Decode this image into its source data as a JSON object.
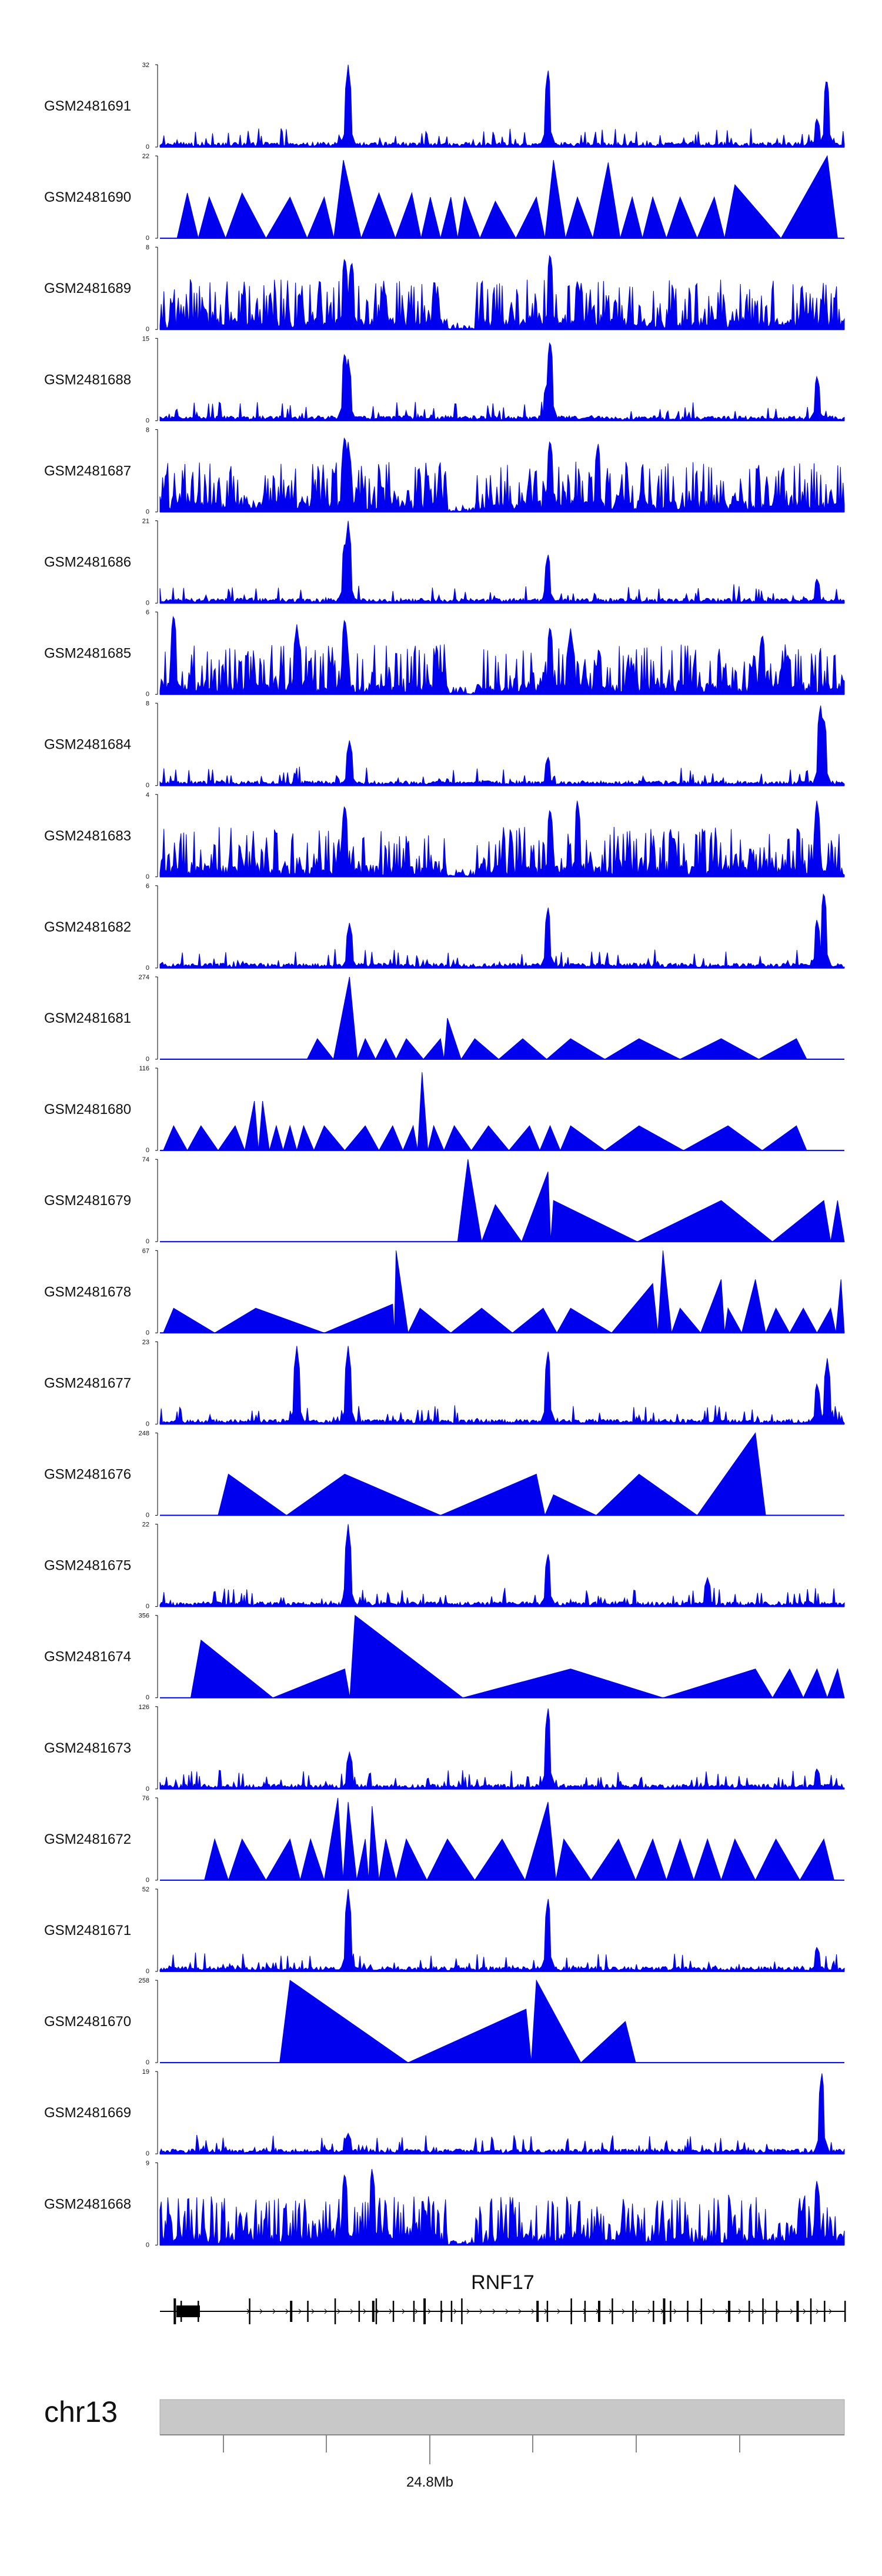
{
  "chart_data": {
    "type": "area",
    "chromosome": "chr13",
    "gene": "RNF17",
    "axis_label": "24.8Mb",
    "color": "#0000ee",
    "tracks": [
      {
        "name": "GSM2481691",
        "max": "32",
        "min": "0",
        "style": "noise",
        "peaks": [
          [
            0.275,
            1.0
          ],
          [
            0.567,
            0.95
          ],
          [
            0.96,
            0.35
          ],
          [
            0.974,
            0.85
          ]
        ]
      },
      {
        "name": "GSM2481690",
        "max": "22",
        "min": "0",
        "style": "tri",
        "peaks": [
          [
            0.04,
            0.55
          ],
          [
            0.072,
            0.5
          ],
          [
            0.12,
            0.55
          ],
          [
            0.19,
            0.5
          ],
          [
            0.24,
            0.5
          ],
          [
            0.268,
            0.95
          ],
          [
            0.32,
            0.55
          ],
          [
            0.368,
            0.55
          ],
          [
            0.395,
            0.5
          ],
          [
            0.425,
            0.5
          ],
          [
            0.445,
            0.5
          ],
          [
            0.49,
            0.45
          ],
          [
            0.55,
            0.5
          ],
          [
            0.575,
            0.95
          ],
          [
            0.61,
            0.5
          ],
          [
            0.655,
            0.92
          ],
          [
            0.69,
            0.5
          ],
          [
            0.72,
            0.5
          ],
          [
            0.76,
            0.5
          ],
          [
            0.81,
            0.5
          ],
          [
            0.84,
            0.65
          ],
          [
            0.975,
            1.0
          ]
        ]
      },
      {
        "name": "GSM2481689",
        "max": "8",
        "min": "0",
        "style": "dense",
        "peaks": [
          [
            0.27,
            0.9
          ],
          [
            0.28,
            0.85
          ],
          [
            0.57,
            0.95
          ],
          [
            0.61,
            0.6
          ]
        ]
      },
      {
        "name": "GSM2481688",
        "max": "15",
        "min": "0",
        "style": "noise",
        "peaks": [
          [
            0.27,
            0.85
          ],
          [
            0.275,
            0.75
          ],
          [
            0.57,
            1.0
          ],
          [
            0.565,
            0.45
          ],
          [
            0.96,
            0.55
          ]
        ]
      },
      {
        "name": "GSM2481687",
        "max": "8",
        "min": "0",
        "style": "dense",
        "peaks": [
          [
            0.27,
            0.95
          ],
          [
            0.275,
            0.85
          ],
          [
            0.57,
            0.9
          ],
          [
            0.64,
            0.85
          ]
        ]
      },
      {
        "name": "GSM2481686",
        "max": "21",
        "min": "0",
        "style": "noise",
        "peaks": [
          [
            0.275,
            1.0
          ],
          [
            0.27,
            0.75
          ],
          [
            0.567,
            0.6
          ],
          [
            0.96,
            0.3
          ]
        ]
      },
      {
        "name": "GSM2481685",
        "max": "6",
        "min": "0",
        "style": "dense",
        "peaks": [
          [
            0.02,
            1.0
          ],
          [
            0.2,
            0.85
          ],
          [
            0.27,
            0.95
          ],
          [
            0.57,
            0.85
          ],
          [
            0.6,
            0.8
          ],
          [
            0.88,
            0.75
          ]
        ]
      },
      {
        "name": "GSM2481684",
        "max": "8",
        "min": "0",
        "style": "noise",
        "peaks": [
          [
            0.277,
            0.55
          ],
          [
            0.567,
            0.35
          ],
          [
            0.965,
            1.0
          ],
          [
            0.97,
            0.85
          ]
        ]
      },
      {
        "name": "GSM2481683",
        "max": "4",
        "min": "0",
        "style": "dense",
        "peaks": [
          [
            0.27,
            0.9
          ],
          [
            0.57,
            0.85
          ],
          [
            0.61,
            0.95
          ],
          [
            0.96,
            0.95
          ]
        ]
      },
      {
        "name": "GSM2481682",
        "max": "6",
        "min": "0",
        "style": "noise",
        "peaks": [
          [
            0.277,
            0.55
          ],
          [
            0.567,
            0.75
          ],
          [
            0.96,
            0.6
          ],
          [
            0.97,
            0.95
          ]
        ]
      },
      {
        "name": "GSM2481681",
        "max": "274",
        "min": "0",
        "style": "tri",
        "peaks": [
          [
            0.23,
            0.25
          ],
          [
            0.277,
            1.0
          ],
          [
            0.3,
            0.25
          ],
          [
            0.33,
            0.25
          ],
          [
            0.36,
            0.25
          ],
          [
            0.41,
            0.25
          ],
          [
            0.42,
            0.5
          ],
          [
            0.46,
            0.25
          ],
          [
            0.53,
            0.25
          ],
          [
            0.6,
            0.25
          ],
          [
            0.7,
            0.25
          ],
          [
            0.82,
            0.25
          ],
          [
            0.93,
            0.25
          ]
        ]
      },
      {
        "name": "GSM2481680",
        "max": "116",
        "min": "0",
        "style": "tri",
        "peaks": [
          [
            0.02,
            0.3
          ],
          [
            0.06,
            0.3
          ],
          [
            0.11,
            0.3
          ],
          [
            0.138,
            0.6
          ],
          [
            0.15,
            0.6
          ],
          [
            0.17,
            0.3
          ],
          [
            0.19,
            0.3
          ],
          [
            0.21,
            0.3
          ],
          [
            0.24,
            0.3
          ],
          [
            0.3,
            0.3
          ],
          [
            0.34,
            0.3
          ],
          [
            0.37,
            0.3
          ],
          [
            0.383,
            0.95
          ],
          [
            0.4,
            0.3
          ],
          [
            0.43,
            0.3
          ],
          [
            0.48,
            0.3
          ],
          [
            0.54,
            0.3
          ],
          [
            0.57,
            0.3
          ],
          [
            0.6,
            0.3
          ],
          [
            0.7,
            0.3
          ],
          [
            0.83,
            0.3
          ],
          [
            0.93,
            0.3
          ]
        ]
      },
      {
        "name": "GSM2481679",
        "max": "74",
        "min": "0",
        "style": "tri",
        "peaks": [
          [
            0.45,
            1.0
          ],
          [
            0.49,
            0.45
          ],
          [
            0.567,
            0.85
          ],
          [
            0.575,
            0.5
          ],
          [
            0.82,
            0.5
          ],
          [
            0.97,
            0.5
          ],
          [
            0.99,
            0.5
          ]
        ]
      },
      {
        "name": "GSM2481678",
        "max": "67",
        "min": "0",
        "style": "tri",
        "peaks": [
          [
            0.02,
            0.3
          ],
          [
            0.14,
            0.3
          ],
          [
            0.34,
            0.35
          ],
          [
            0.345,
            1.0
          ],
          [
            0.38,
            0.3
          ],
          [
            0.47,
            0.3
          ],
          [
            0.56,
            0.3
          ],
          [
            0.6,
            0.3
          ],
          [
            0.72,
            0.6
          ],
          [
            0.735,
            1.0
          ],
          [
            0.76,
            0.3
          ],
          [
            0.82,
            0.65
          ],
          [
            0.83,
            0.3
          ],
          [
            0.87,
            0.65
          ],
          [
            0.9,
            0.3
          ],
          [
            0.94,
            0.3
          ],
          [
            0.98,
            0.3
          ],
          [
            0.995,
            0.65
          ]
        ]
      },
      {
        "name": "GSM2481677",
        "max": "23",
        "min": "0",
        "style": "noise",
        "peaks": [
          [
            0.2,
            0.95
          ],
          [
            0.275,
            0.95
          ],
          [
            0.567,
            0.9
          ],
          [
            0.96,
            0.5
          ],
          [
            0.975,
            0.8
          ]
        ]
      },
      {
        "name": "GSM2481676",
        "max": "248",
        "min": "0",
        "style": "tri",
        "peaks": [
          [
            0.1,
            0.5
          ],
          [
            0.27,
            0.5
          ],
          [
            0.55,
            0.5
          ],
          [
            0.575,
            0.25
          ],
          [
            0.7,
            0.5
          ],
          [
            0.87,
            1.0
          ]
        ]
      },
      {
        "name": "GSM2481675",
        "max": "22",
        "min": "0",
        "style": "noise",
        "peaks": [
          [
            0.275,
            1.0
          ],
          [
            0.567,
            0.65
          ],
          [
            0.8,
            0.35
          ]
        ]
      },
      {
        "name": "GSM2481674",
        "max": "356",
        "min": "0",
        "style": "tri",
        "peaks": [
          [
            0.06,
            0.7
          ],
          [
            0.27,
            0.35
          ],
          [
            0.285,
            1.0
          ],
          [
            0.6,
            0.35
          ],
          [
            0.87,
            0.35
          ],
          [
            0.92,
            0.35
          ],
          [
            0.96,
            0.35
          ],
          [
            0.99,
            0.35
          ]
        ]
      },
      {
        "name": "GSM2481673",
        "max": "126",
        "min": "0",
        "style": "noise",
        "peaks": [
          [
            0.277,
            0.45
          ],
          [
            0.567,
            1.0
          ],
          [
            0.96,
            0.25
          ]
        ]
      },
      {
        "name": "GSM2481672",
        "max": "76",
        "min": "0",
        "style": "tri",
        "peaks": [
          [
            0.08,
            0.5
          ],
          [
            0.12,
            0.5
          ],
          [
            0.19,
            0.5
          ],
          [
            0.22,
            0.5
          ],
          [
            0.26,
            1.0
          ],
          [
            0.275,
            0.95
          ],
          [
            0.3,
            0.5
          ],
          [
            0.31,
            0.9
          ],
          [
            0.33,
            0.5
          ],
          [
            0.36,
            0.5
          ],
          [
            0.42,
            0.5
          ],
          [
            0.5,
            0.5
          ],
          [
            0.567,
            0.95
          ],
          [
            0.59,
            0.5
          ],
          [
            0.67,
            0.5
          ],
          [
            0.72,
            0.5
          ],
          [
            0.76,
            0.5
          ],
          [
            0.8,
            0.5
          ],
          [
            0.84,
            0.5
          ],
          [
            0.9,
            0.5
          ],
          [
            0.97,
            0.5
          ]
        ]
      },
      {
        "name": "GSM2481671",
        "max": "52",
        "min": "0",
        "style": "noise",
        "peaks": [
          [
            0.275,
            1.0
          ],
          [
            0.567,
            0.9
          ],
          [
            0.96,
            0.3
          ]
        ]
      },
      {
        "name": "GSM2481670",
        "max": "258",
        "min": "0",
        "style": "tri",
        "peaks": [
          [
            0.19,
            1.0
          ],
          [
            0.535,
            0.65
          ],
          [
            0.55,
            1.0
          ],
          [
            0.68,
            0.5
          ]
        ]
      },
      {
        "name": "GSM2481669",
        "max": "19",
        "min": "0",
        "style": "noise",
        "peaks": [
          [
            0.275,
            0.25
          ],
          [
            0.967,
            1.0
          ]
        ]
      },
      {
        "name": "GSM2481668",
        "max": "9",
        "min": "0",
        "style": "dense",
        "peaks": [
          [
            0.27,
            0.9
          ],
          [
            0.31,
            0.95
          ],
          [
            0.96,
            0.8
          ]
        ]
      }
    ]
  }
}
